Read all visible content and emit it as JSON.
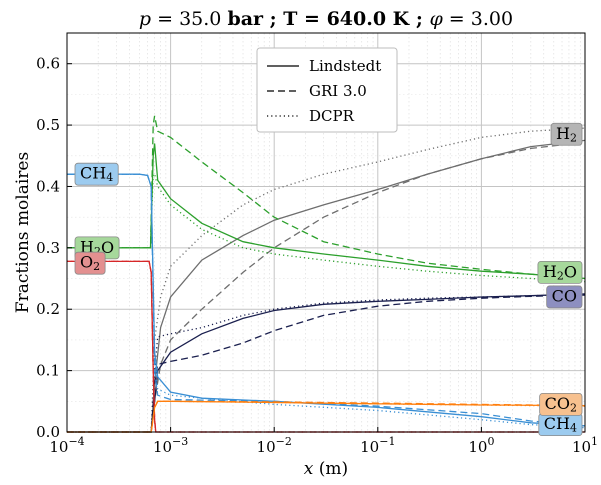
{
  "chart_data": {
    "type": "line",
    "title": "p = 35.0 bar ; T = 640.0 K ; φ = 3.00",
    "title_parts": {
      "p": "35.0",
      "T": "640.0",
      "phi": "3.00",
      "p_unit": "bar",
      "T_unit": "K"
    },
    "xlabel": "x (m)",
    "ylabel": "Fractions molaires",
    "xscale": "log",
    "xlim": [
      0.0001,
      10
    ],
    "ylim": [
      0.0,
      0.65
    ],
    "yticks": [
      "0.0",
      "0.1",
      "0.2",
      "0.3",
      "0.4",
      "0.5",
      "0.6"
    ],
    "xticks": [
      {
        "base": "10",
        "exp": "−4"
      },
      {
        "base": "10",
        "exp": "−3"
      },
      {
        "base": "10",
        "exp": "−2"
      },
      {
        "base": "10",
        "exp": "−1"
      },
      {
        "base": "10",
        "exp": "0"
      },
      {
        "base": "10",
        "exp": "1"
      }
    ],
    "grid": true,
    "legend": {
      "placement": "top-center",
      "entries": [
        {
          "label": "Lindstedt",
          "linestyle": "solid"
        },
        {
          "label": "GRI 3.0",
          "linestyle": "dashed"
        },
        {
          "label": "DCPR",
          "linestyle": "dotted"
        }
      ]
    },
    "species": [
      {
        "name": "H2",
        "base": "H",
        "sub": "2",
        "color": "#6e6e6e",
        "box_color": "#b5b5b5",
        "label_side": "right",
        "label_y": 0.485,
        "series": {
          "Lindstedt": [
            [
              0.0001,
              0
            ],
            [
              0.00065,
              0
            ],
            [
              0.0007,
              0.08
            ],
            [
              0.0008,
              0.17
            ],
            [
              0.001,
              0.22
            ],
            [
              0.002,
              0.28
            ],
            [
              0.005,
              0.32
            ],
            [
              0.01,
              0.345
            ],
            [
              0.03,
              0.37
            ],
            [
              0.1,
              0.395
            ],
            [
              0.3,
              0.42
            ],
            [
              1,
              0.445
            ],
            [
              3,
              0.465
            ],
            [
              10,
              0.475
            ]
          ],
          "GRI 3.0": [
            [
              0.0001,
              0
            ],
            [
              0.00065,
              0
            ],
            [
              0.0007,
              0.05
            ],
            [
              0.0008,
              0.11
            ],
            [
              0.001,
              0.15
            ],
            [
              0.002,
              0.2
            ],
            [
              0.005,
              0.26
            ],
            [
              0.01,
              0.3
            ],
            [
              0.03,
              0.35
            ],
            [
              0.1,
              0.39
            ],
            [
              0.3,
              0.42
            ],
            [
              1,
              0.445
            ],
            [
              3,
              0.462
            ],
            [
              10,
              0.472
            ]
          ],
          "DCPR": [
            [
              0.0001,
              0
            ],
            [
              0.00065,
              0
            ],
            [
              0.0007,
              0.15
            ],
            [
              0.0008,
              0.22
            ],
            [
              0.001,
              0.27
            ],
            [
              0.002,
              0.32
            ],
            [
              0.005,
              0.37
            ],
            [
              0.01,
              0.395
            ],
            [
              0.03,
              0.42
            ],
            [
              0.1,
              0.44
            ],
            [
              0.3,
              0.46
            ],
            [
              1,
              0.48
            ],
            [
              3,
              0.49
            ],
            [
              10,
              0.495
            ]
          ]
        }
      },
      {
        "name": "H2O",
        "base": "H",
        "sub": "2",
        "tail": "O",
        "color": "#2ca02c",
        "box_color": "#a6d89b",
        "label_side": "both",
        "label_y_left": 0.3,
        "label_y_right": 0.26,
        "series": {
          "Lindstedt": [
            [
              0.0001,
              0.3
            ],
            [
              0.00064,
              0.3
            ],
            [
              0.00068,
              0.45
            ],
            [
              0.0007,
              0.47
            ],
            [
              0.00075,
              0.41
            ],
            [
              0.001,
              0.38
            ],
            [
              0.002,
              0.34
            ],
            [
              0.005,
              0.31
            ],
            [
              0.01,
              0.3
            ],
            [
              0.03,
              0.29
            ],
            [
              0.1,
              0.28
            ],
            [
              0.3,
              0.27
            ],
            [
              1,
              0.262
            ],
            [
              3,
              0.257
            ],
            [
              10,
              0.25
            ]
          ],
          "GRI 3.0": [
            [
              0.0001,
              0.3
            ],
            [
              0.00064,
              0.3
            ],
            [
              0.00068,
              0.5
            ],
            [
              0.0007,
              0.515
            ],
            [
              0.00075,
              0.49
            ],
            [
              0.001,
              0.48
            ],
            [
              0.002,
              0.44
            ],
            [
              0.005,
              0.39
            ],
            [
              0.01,
              0.35
            ],
            [
              0.03,
              0.31
            ],
            [
              0.1,
              0.29
            ],
            [
              0.3,
              0.275
            ],
            [
              1,
              0.265
            ],
            [
              3,
              0.257
            ],
            [
              10,
              0.25
            ]
          ],
          "DCPR": [
            [
              0.0001,
              0.3
            ],
            [
              0.00064,
              0.3
            ],
            [
              0.00068,
              0.42
            ],
            [
              0.0007,
              0.42
            ],
            [
              0.00075,
              0.4
            ],
            [
              0.001,
              0.37
            ],
            [
              0.002,
              0.33
            ],
            [
              0.005,
              0.3
            ],
            [
              0.01,
              0.29
            ],
            [
              0.03,
              0.28
            ],
            [
              0.1,
              0.27
            ],
            [
              0.3,
              0.262
            ],
            [
              1,
              0.255
            ],
            [
              3,
              0.25
            ],
            [
              10,
              0.245
            ]
          ]
        }
      },
      {
        "name": "CO",
        "base": "CO",
        "color": "#1a1f4e",
        "box_color": "#8d8fc0",
        "label_side": "right",
        "label_y": 0.22,
        "series": {
          "Lindstedt": [
            [
              0.0001,
              0
            ],
            [
              0.00065,
              0
            ],
            [
              0.0007,
              0.05
            ],
            [
              0.00075,
              0.1
            ],
            [
              0.001,
              0.13
            ],
            [
              0.002,
              0.16
            ],
            [
              0.005,
              0.185
            ],
            [
              0.01,
              0.198
            ],
            [
              0.03,
              0.208
            ],
            [
              0.1,
              0.213
            ],
            [
              0.3,
              0.216
            ],
            [
              1,
              0.22
            ],
            [
              3,
              0.222
            ],
            [
              10,
              0.225
            ]
          ],
          "GRI 3.0": [
            [
              0.0001,
              0
            ],
            [
              0.00065,
              0
            ],
            [
              0.0007,
              0.08
            ],
            [
              0.00075,
              0.11
            ],
            [
              0.001,
              0.115
            ],
            [
              0.002,
              0.125
            ],
            [
              0.005,
              0.145
            ],
            [
              0.01,
              0.165
            ],
            [
              0.03,
              0.19
            ],
            [
              0.1,
              0.205
            ],
            [
              0.3,
              0.213
            ],
            [
              1,
              0.218
            ],
            [
              3,
              0.221
            ],
            [
              10,
              0.223
            ]
          ],
          "DCPR": [
            [
              0.0001,
              0
            ],
            [
              0.00065,
              0
            ],
            [
              0.0007,
              0.1
            ],
            [
              0.00075,
              0.155
            ],
            [
              0.001,
              0.16
            ],
            [
              0.002,
              0.17
            ],
            [
              0.005,
              0.19
            ],
            [
              0.01,
              0.2
            ],
            [
              0.03,
              0.21
            ],
            [
              0.1,
              0.215
            ],
            [
              0.3,
              0.218
            ],
            [
              1,
              0.22
            ],
            [
              3,
              0.222
            ],
            [
              10,
              0.224
            ]
          ]
        }
      },
      {
        "name": "CH4",
        "base": "CH",
        "sub": "4",
        "color": "#3a8fd4",
        "box_color": "#9ccbef",
        "label_side": "both",
        "label_y_left": 0.42,
        "label_y_right": 0.012,
        "series": {
          "Lindstedt": [
            [
              0.0001,
              0.42
            ],
            [
              0.0005,
              0.42
            ],
            [
              0.0006,
              0.418
            ],
            [
              0.00065,
              0.4
            ],
            [
              0.0007,
              0.13
            ],
            [
              0.00075,
              0.09
            ],
            [
              0.001,
              0.065
            ],
            [
              0.002,
              0.055
            ],
            [
              0.01,
              0.05
            ],
            [
              0.1,
              0.04
            ],
            [
              1,
              0.025
            ],
            [
              3,
              0.015
            ],
            [
              10,
              0.01
            ]
          ],
          "GRI 3.0": [
            [
              0.0001,
              0.42
            ],
            [
              0.0005,
              0.42
            ],
            [
              0.0006,
              0.418
            ],
            [
              0.00065,
              0.4
            ],
            [
              0.0007,
              0.1
            ],
            [
              0.00075,
              0.06
            ],
            [
              0.001,
              0.053
            ],
            [
              0.002,
              0.052
            ],
            [
              0.01,
              0.05
            ],
            [
              0.1,
              0.042
            ],
            [
              1,
              0.03
            ],
            [
              3,
              0.018
            ],
            [
              10,
              0.01
            ]
          ],
          "DCPR": [
            [
              0.0001,
              0.42
            ],
            [
              0.0005,
              0.42
            ],
            [
              0.0006,
              0.418
            ],
            [
              0.00065,
              0.4
            ],
            [
              0.0007,
              0.12
            ],
            [
              0.00075,
              0.07
            ],
            [
              0.001,
              0.06
            ],
            [
              0.002,
              0.055
            ],
            [
              0.01,
              0.045
            ],
            [
              0.1,
              0.035
            ],
            [
              1,
              0.02
            ],
            [
              3,
              0.012
            ],
            [
              10,
              0.007
            ]
          ]
        }
      },
      {
        "name": "O2",
        "base": "O",
        "sub": "2",
        "color": "#d62728",
        "box_color": "#e39090",
        "label_side": "left",
        "label_y": 0.275,
        "series": {
          "Lindstedt": [
            [
              0.0001,
              0.278
            ],
            [
              0.00062,
              0.278
            ],
            [
              0.00065,
              0.26
            ],
            [
              0.00068,
              0.1
            ],
            [
              0.0007,
              0.02
            ],
            [
              0.00072,
              0
            ],
            [
              10,
              0
            ]
          ],
          "GRI 3.0": [
            [
              0.0001,
              0.278
            ],
            [
              0.00062,
              0.278
            ],
            [
              0.00065,
              0.26
            ],
            [
              0.00068,
              0.1
            ],
            [
              0.0007,
              0.02
            ],
            [
              0.00072,
              0
            ],
            [
              10,
              0
            ]
          ],
          "DCPR": [
            [
              0.0001,
              0.278
            ],
            [
              0.00062,
              0.278
            ],
            [
              0.00065,
              0.26
            ],
            [
              0.00068,
              0.1
            ],
            [
              0.0007,
              0.02
            ],
            [
              0.00072,
              0
            ],
            [
              10,
              0
            ]
          ]
        }
      },
      {
        "name": "CO2",
        "base": "CO",
        "sub": "2",
        "color": "#ff7f0e",
        "box_color": "#f7c18f",
        "label_side": "right",
        "label_y": 0.045,
        "series": {
          "Lindstedt": [
            [
              0.0001,
              0
            ],
            [
              0.00065,
              0
            ],
            [
              0.0007,
              0.04
            ],
            [
              0.00075,
              0.05
            ],
            [
              0.001,
              0.05
            ],
            [
              0.01,
              0.048
            ],
            [
              0.1,
              0.046
            ],
            [
              1,
              0.044
            ],
            [
              10,
              0.043
            ]
          ],
          "GRI 3.0": [
            [
              0.0001,
              0
            ],
            [
              0.00065,
              0
            ],
            [
              0.0007,
              0.04
            ],
            [
              0.00075,
              0.05
            ],
            [
              0.001,
              0.05
            ],
            [
              0.01,
              0.049
            ],
            [
              0.1,
              0.047
            ],
            [
              1,
              0.045
            ],
            [
              10,
              0.043
            ]
          ],
          "DCPR": [
            [
              0.0001,
              0
            ],
            [
              0.00065,
              0
            ],
            [
              0.0007,
              0.04
            ],
            [
              0.00075,
              0.05
            ],
            [
              0.001,
              0.05
            ],
            [
              0.01,
              0.048
            ],
            [
              0.1,
              0.046
            ],
            [
              1,
              0.044
            ],
            [
              10,
              0.042
            ]
          ]
        }
      }
    ]
  }
}
